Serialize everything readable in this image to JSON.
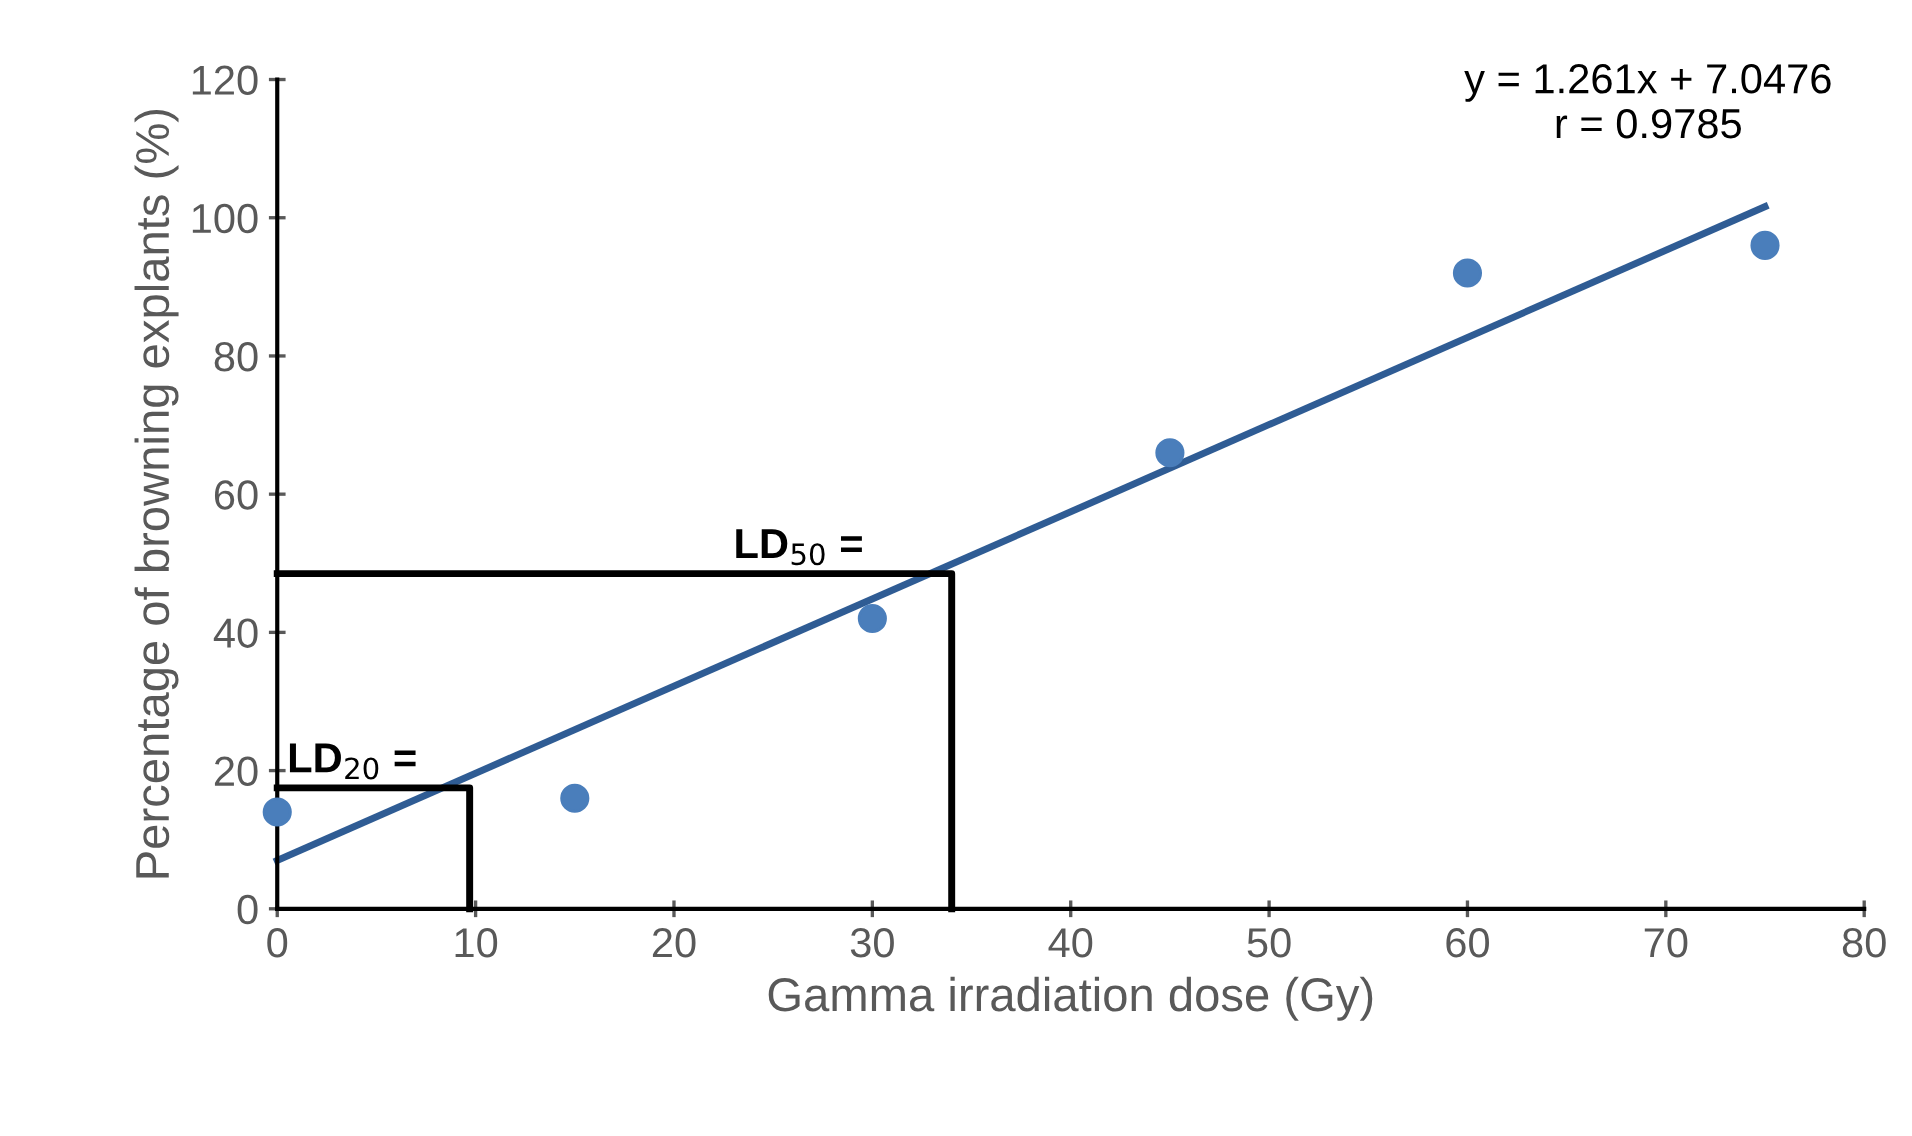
{
  "chart_data": {
    "type": "scatter",
    "xlabel": "Gamma irradiation dose (Gy)",
    "ylabel": "Percentage of browning explants (%)",
    "xlim": [
      0,
      80
    ],
    "xticks": [
      0,
      10,
      20,
      30,
      40,
      50,
      60,
      70,
      80
    ],
    "ylim": [
      0,
      120
    ],
    "yticks": [
      0,
      20,
      40,
      60,
      80,
      100,
      120
    ],
    "grid": false,
    "marker": "circle",
    "series": [
      {
        "color": "#4a7ebb",
        "x": [
          0,
          15,
          30,
          45,
          60,
          75
        ],
        "values": [
          14,
          16,
          42,
          66,
          92,
          96
        ]
      },
      {
        "type": "line",
        "color": "#2f5c94",
        "marker": "none",
        "x": [
          0,
          75
        ],
        "values": [
          7,
          101.6
        ]
      },
      {
        "type": "line",
        "color": "#000000",
        "marker": "none",
        "x": [
          0,
          34,
          34
        ],
        "values": [
          48.5,
          48.5,
          0
        ]
      },
      {
        "type": "line",
        "color": "#000000",
        "marker": "none",
        "x": [
          0,
          9.7,
          9.7
        ],
        "values": [
          17.5,
          17.5,
          0
        ]
      }
    ],
    "annotations": [
      "y = 1.261x + 7.0476\nr = 0.9785",
      {
        "text": "LD$_{50}$ =",
        "x": 23,
        "y": 49.5
      },
      {
        "text": "LD$_{20}$ =",
        "x": 0.5,
        "y": 18.5
      }
    ]
  }
}
